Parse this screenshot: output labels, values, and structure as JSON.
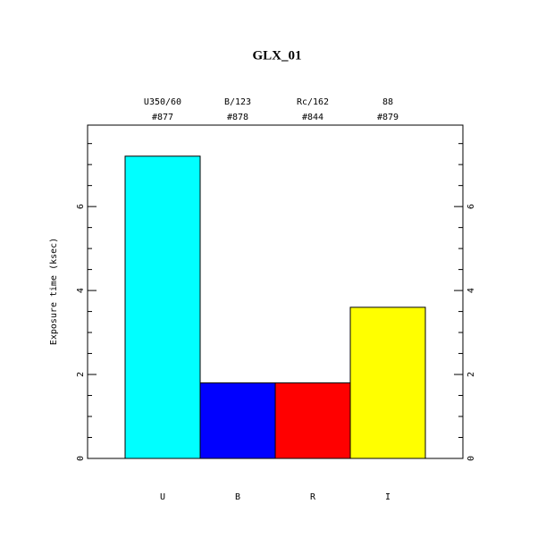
{
  "chart_data": {
    "type": "bar",
    "title": "GLX_01",
    "y_label": "Exposure time (ksec)",
    "categories": [
      "U",
      "B",
      "R",
      "I"
    ],
    "filters": [
      "U350/60",
      "B/123",
      "Rc/162",
      "88"
    ],
    "ids": [
      "#877",
      "#878",
      "#844",
      "#879"
    ],
    "values": [
      7.2,
      1.8,
      1.8,
      3.6
    ],
    "colors": [
      "#00ffff",
      "#0000ff",
      "#ff0000",
      "#ffff00"
    ],
    "ylim": [
      0,
      7.94
    ],
    "yticks": [
      0,
      2,
      4,
      6
    ],
    "minor_yticks": [
      0.5,
      1,
      1.5,
      2.5,
      3,
      3.5,
      4.5,
      5,
      5.5,
      6.5,
      7,
      7.5
    ]
  }
}
